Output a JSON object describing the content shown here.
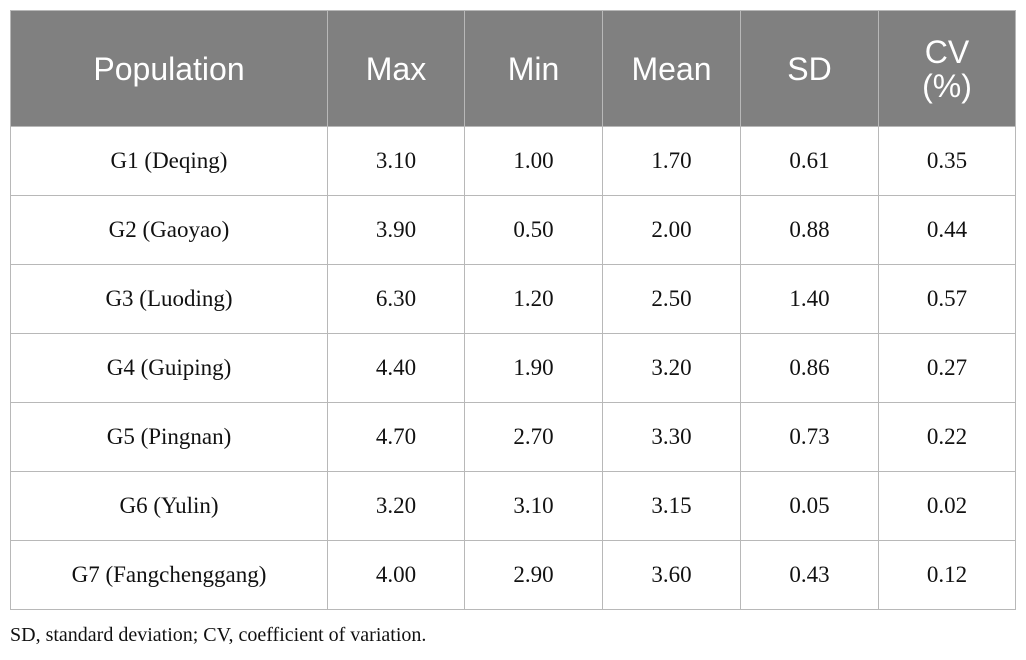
{
  "table": {
    "headers": [
      "Population",
      "Max",
      "Min",
      "Mean",
      "SD",
      "CV\n(%)"
    ],
    "rows": [
      [
        "G1 (Deqing)",
        "3.10",
        "1.00",
        "1.70",
        "0.61",
        "0.35"
      ],
      [
        "G2 (Gaoyao)",
        "3.90",
        "0.50",
        "2.00",
        "0.88",
        "0.44"
      ],
      [
        "G3 (Luoding)",
        "6.30",
        "1.20",
        "2.50",
        "1.40",
        "0.57"
      ],
      [
        "G4 (Guiping)",
        "4.40",
        "1.90",
        "3.20",
        "0.86",
        "0.27"
      ],
      [
        "G5 (Pingnan)",
        "4.70",
        "2.70",
        "3.30",
        "0.73",
        "0.22"
      ],
      [
        "G6 (Yulin)",
        "3.20",
        "3.10",
        "3.15",
        "0.05",
        "0.02"
      ],
      [
        "G7 (Fangchenggang)",
        "4.00",
        "2.90",
        "3.60",
        "0.43",
        "0.12"
      ]
    ]
  },
  "footnote": "SD, standard deviation; CV, coefficient of variation."
}
